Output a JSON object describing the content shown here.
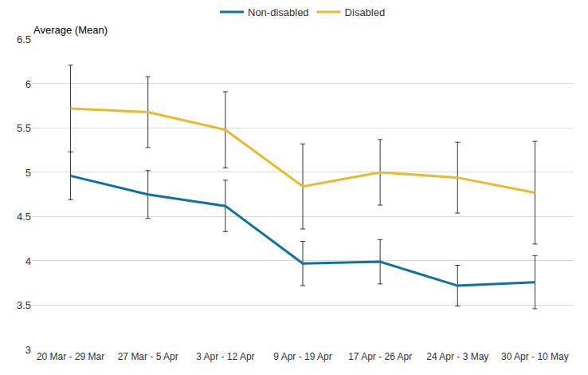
{
  "chart_data": {
    "type": "line",
    "ylabel": "Average (Mean)",
    "categories": [
      "20 Mar - 29 Mar",
      "27 Mar - 5 Apr",
      "3 Apr - 12 Apr",
      "9 Apr - 19 Apr",
      "17 Apr - 26 Apr",
      "24 Apr - 3 May",
      "30 Apr - 10 May"
    ],
    "series": [
      {
        "name": "Non-disabled",
        "color": "#10709f",
        "values": [
          4.96,
          4.75,
          4.62,
          3.97,
          3.99,
          3.72,
          3.76
        ],
        "error": [
          0.27,
          0.27,
          0.29,
          0.25,
          0.25,
          0.23,
          0.3
        ]
      },
      {
        "name": "Disabled",
        "color": "#e6bb2e",
        "values": [
          5.72,
          5.68,
          5.48,
          4.84,
          5.0,
          4.94,
          4.77
        ],
        "error": [
          0.49,
          0.4,
          0.43,
          0.48,
          0.37,
          0.4,
          0.58
        ]
      }
    ],
    "ylim": [
      3,
      6.5
    ],
    "yticks": [
      3,
      3.5,
      4,
      4.5,
      5,
      5.5,
      6,
      6.5
    ],
    "grid": true,
    "legend": "top"
  }
}
